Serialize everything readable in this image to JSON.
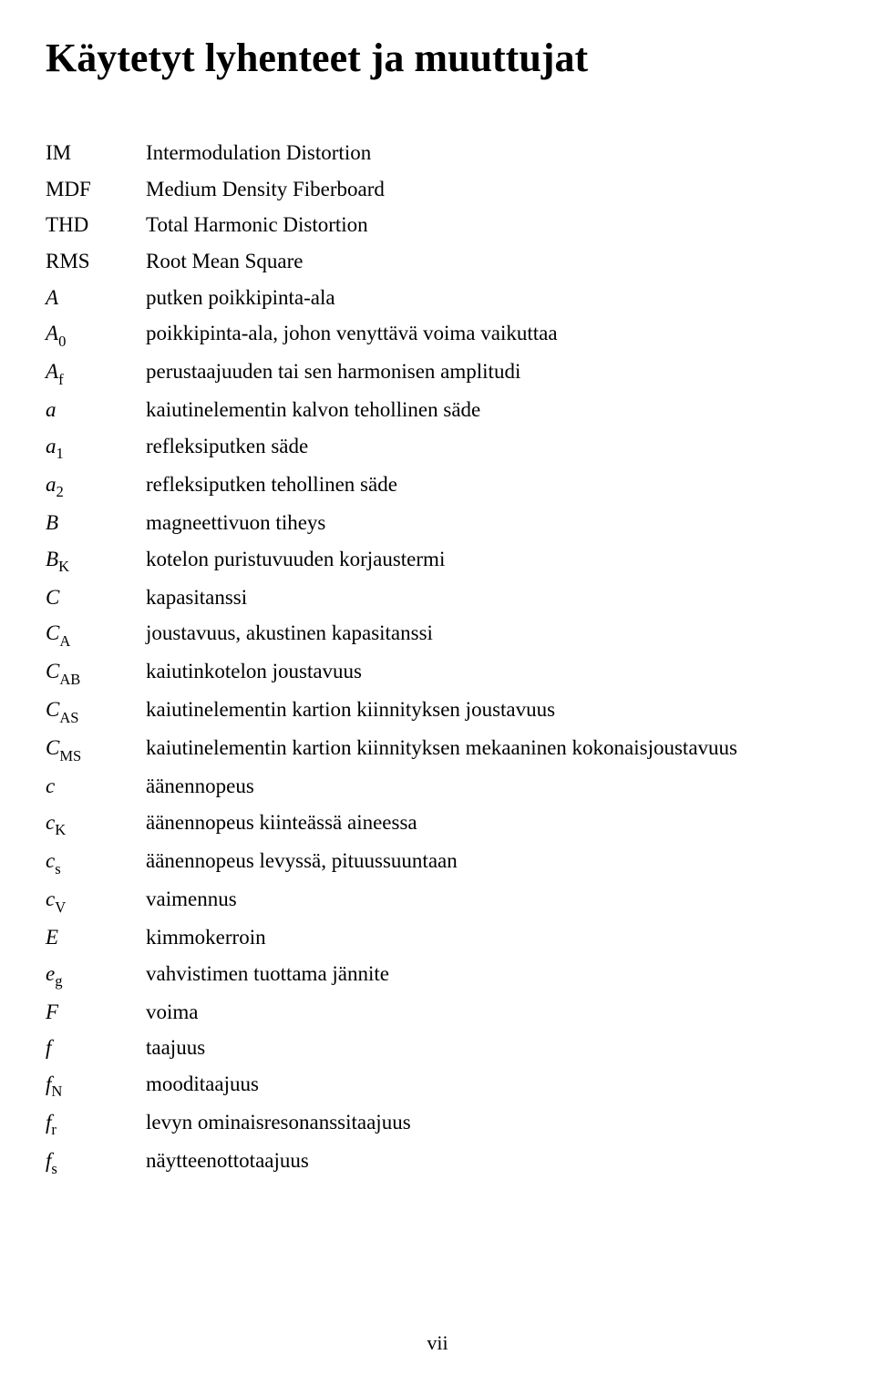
{
  "title": "Käytetyt lyhenteet ja muuttujat",
  "page_number": "vii",
  "rows": [
    {
      "var": "IM",
      "sub": null,
      "italic": false,
      "sub_style": null,
      "desc": "Intermodulation Distortion"
    },
    {
      "var": "MDF",
      "sub": null,
      "italic": false,
      "sub_style": null,
      "desc": "Medium Density Fiberboard"
    },
    {
      "var": "THD",
      "sub": null,
      "italic": false,
      "sub_style": null,
      "desc": "Total Harmonic Distortion"
    },
    {
      "var": "RMS",
      "sub": null,
      "italic": false,
      "sub_style": null,
      "desc": "Root Mean Square"
    },
    {
      "var": "A",
      "sub": null,
      "italic": true,
      "sub_style": null,
      "desc": "putken poikkipinta-ala"
    },
    {
      "var": "A",
      "sub": "0",
      "italic": true,
      "sub_style": "rm",
      "desc": "poikkipinta-ala, johon venyttävä voima vaikuttaa"
    },
    {
      "var": "A",
      "sub": "f",
      "italic": true,
      "sub_style": "rm",
      "desc": "perustaajuuden tai sen harmonisen amplitudi"
    },
    {
      "var": "a",
      "sub": null,
      "italic": true,
      "sub_style": null,
      "desc": "kaiutinelementin kalvon tehollinen säde"
    },
    {
      "var": "a",
      "sub": "1",
      "italic": true,
      "sub_style": "rm",
      "desc": "refleksiputken säde"
    },
    {
      "var": "a",
      "sub": "2",
      "italic": true,
      "sub_style": "rm",
      "desc": "refleksiputken tehollinen säde"
    },
    {
      "var": "B",
      "sub": null,
      "italic": true,
      "sub_style": null,
      "desc": "magneettivuon tiheys"
    },
    {
      "var": "B",
      "sub": "K",
      "italic": true,
      "sub_style": "rm",
      "desc": "kotelon puristuvuuden korjaustermi"
    },
    {
      "var": "C",
      "sub": null,
      "italic": true,
      "sub_style": null,
      "desc": "kapasitanssi"
    },
    {
      "var": "C",
      "sub": "A",
      "italic": true,
      "sub_style": "rm",
      "desc": "joustavuus, akustinen kapasitanssi"
    },
    {
      "var": "C",
      "sub": "AB",
      "italic": true,
      "sub_style": "rm",
      "desc": "kaiutinkotelon joustavuus"
    },
    {
      "var": "C",
      "sub": "AS",
      "italic": true,
      "sub_style": "rm",
      "desc": "kaiutinelementin kartion kiinnityksen joustavuus"
    },
    {
      "var": "C",
      "sub": "MS",
      "italic": true,
      "sub_style": "rm",
      "desc": "kaiutinelementin kartion kiinnityksen mekaaninen kokonaisjoustavuus"
    },
    {
      "var": "c",
      "sub": null,
      "italic": true,
      "sub_style": null,
      "desc": "äänennopeus"
    },
    {
      "var": "c",
      "sub": "K",
      "italic": true,
      "sub_style": "rm",
      "desc": "äänennopeus kiinteässä aineessa"
    },
    {
      "var": "c",
      "sub": "s",
      "italic": true,
      "sub_style": "rm",
      "desc": "äänennopeus levyssä, pituussuuntaan"
    },
    {
      "var": "c",
      "sub": "V",
      "italic": true,
      "sub_style": "rm",
      "desc": "vaimennus"
    },
    {
      "var": "E",
      "sub": null,
      "italic": true,
      "sub_style": null,
      "desc": "kimmokerroin"
    },
    {
      "var": "e",
      "sub": "g",
      "italic": true,
      "sub_style": "rm",
      "desc": "vahvistimen tuottama jännite"
    },
    {
      "var": "F",
      "sub": null,
      "italic": true,
      "sub_style": null,
      "desc": "voima"
    },
    {
      "var": "f",
      "sub": null,
      "italic": true,
      "sub_style": null,
      "desc": "taajuus"
    },
    {
      "var": "f",
      "sub": "N",
      "italic": true,
      "sub_style": "rm",
      "desc": "mooditaajuus"
    },
    {
      "var": "f",
      "sub": "r",
      "italic": true,
      "sub_style": "rm",
      "desc": "levyn ominaisresonanssitaajuus"
    },
    {
      "var": "f",
      "sub": "s",
      "italic": true,
      "sub_style": "rm",
      "desc": "näytteenottotaajuus"
    }
  ]
}
